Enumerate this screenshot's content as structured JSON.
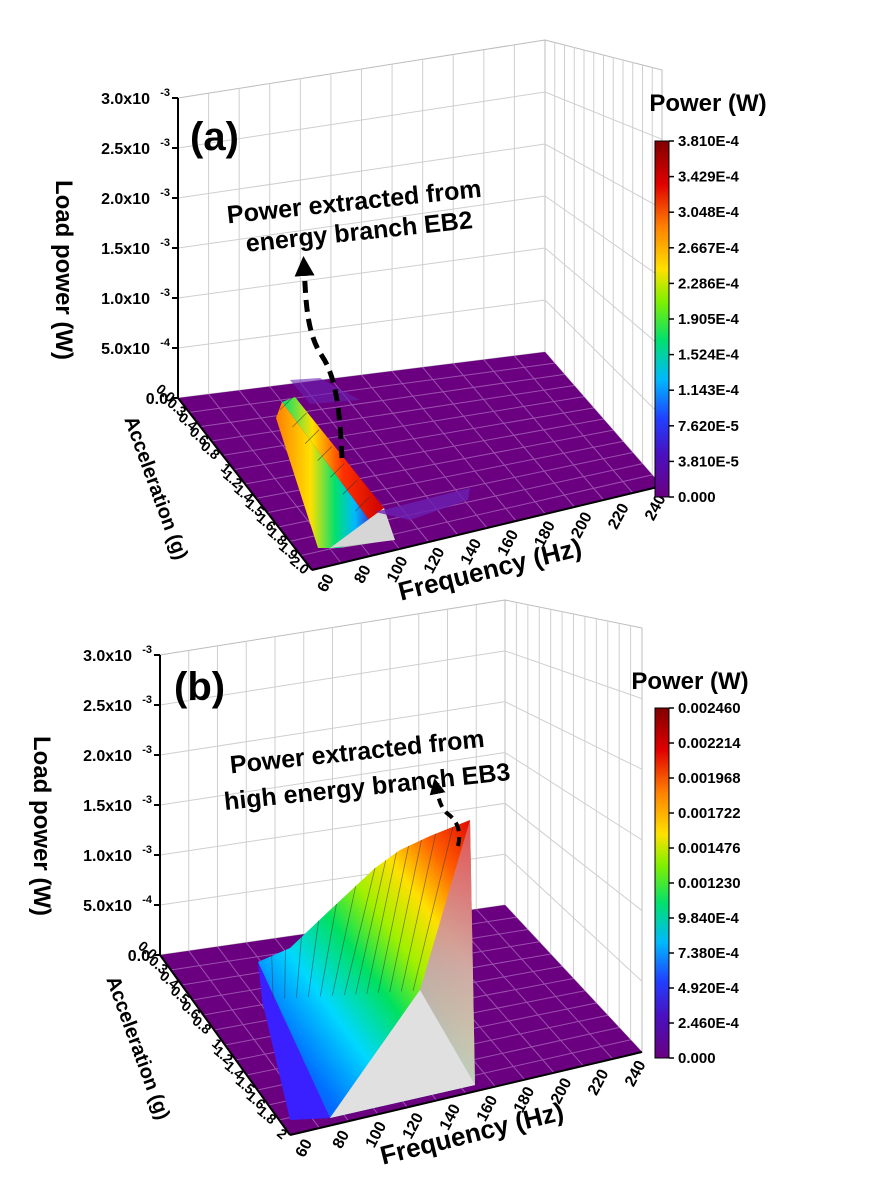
{
  "colors": {
    "floor": "#6a0080",
    "floor_line": "#9b4fae",
    "background": "#ffffff",
    "colormap": [
      "#6a0080",
      "#3a1aff",
      "#00c8ff",
      "#00e070",
      "#b0ff00",
      "#ffe000",
      "#ff8000",
      "#e00000",
      "#800000"
    ]
  },
  "chart_data": [
    {
      "type": "surface3d",
      "panel_label": "(a)",
      "annotation": [
        "Power extracted from",
        "energy branch EB2"
      ],
      "z_axis": {
        "label": "Load power (W)",
        "ticks": [
          "0.0",
          "5.0x10",
          "1.0x10",
          "1.5x10",
          "2.0x10",
          "2.5x10",
          "3.0x10"
        ],
        "exponents": [
          "",
          "-4",
          "-3",
          "-3",
          "-3",
          "-3",
          "-3"
        ],
        "values": [
          0,
          0.0005,
          0.001,
          0.0015,
          0.002,
          0.0025,
          0.003
        ],
        "range": [
          0,
          0.003
        ]
      },
      "y_axis": {
        "label": "Acceleration (g)",
        "ticks": [
          "0.0",
          "0.3",
          "0.4",
          "0.6",
          "0.8",
          "1",
          "1.2",
          "1.4",
          "1.5",
          "1.6",
          "1.8",
          "1.9",
          "2.0"
        ]
      },
      "x_axis": {
        "label": "Frequency (Hz)",
        "ticks": [
          "60",
          "80",
          "100",
          "120",
          "140",
          "160",
          "180",
          "200",
          "220",
          "240"
        ],
        "range": [
          50,
          240
        ]
      },
      "colorbar": {
        "title": "Power (W)",
        "ticks": [
          "3.810E-4",
          "3.429E-4",
          "3.048E-4",
          "2.667E-4",
          "2.286E-4",
          "1.905E-4",
          "1.524E-4",
          "1.143E-4",
          "7.620E-5",
          "3.810E-5",
          "0.000"
        ],
        "range": [
          0,
          0.000381
        ]
      },
      "surface_ridge": [
        {
          "acceleration": 0.1,
          "frequency": 62,
          "power": 0.0
        },
        {
          "acceleration": 0.4,
          "frequency": 66,
          "power": 4e-05
        },
        {
          "acceleration": 0.8,
          "frequency": 72,
          "power": 0.00012
        },
        {
          "acceleration": 1.2,
          "frequency": 78,
          "power": 0.00022
        },
        {
          "acceleration": 1.6,
          "frequency": 84,
          "power": 0.0003
        },
        {
          "acceleration": 2.0,
          "frequency": 90,
          "power": 0.00038
        }
      ]
    },
    {
      "type": "surface3d",
      "panel_label": "(b)",
      "annotation": [
        "Power extracted from",
        "high energy branch EB3"
      ],
      "z_axis": {
        "label": "Load power (W)",
        "ticks": [
          "0.0",
          "5.0x10",
          "1.0x10",
          "1.5x10",
          "2.0x10",
          "2.5x10",
          "3.0x10"
        ],
        "exponents": [
          "",
          "-4",
          "-3",
          "-3",
          "-3",
          "-3",
          "-3"
        ],
        "values": [
          0,
          0.0005,
          0.001,
          0.0015,
          0.002,
          0.0025,
          0.003
        ],
        "range": [
          0,
          0.003
        ]
      },
      "y_axis": {
        "label": "Acceleration (g)",
        "ticks": [
          "0.0",
          "0.3",
          "0.4",
          "0.5",
          "0.6",
          "0.8",
          "1",
          "1.2",
          "1.4",
          "1.5",
          "1.6",
          "1.8",
          "2"
        ]
      },
      "x_axis": {
        "label": "Frequency (Hz)",
        "ticks": [
          "60",
          "80",
          "100",
          "120",
          "140",
          "160",
          "180",
          "200",
          "220",
          "240"
        ],
        "range": [
          50,
          240
        ]
      },
      "colorbar": {
        "title": "Power (W)",
        "ticks": [
          "0.002460",
          "0.002214",
          "0.001968",
          "0.001722",
          "0.001476",
          "0.001230",
          "9.840E-4",
          "7.380E-4",
          "4.920E-4",
          "2.460E-4",
          "0.000"
        ],
        "range": [
          0,
          0.00246
        ]
      },
      "surface_ridge": [
        {
          "acceleration": 0.1,
          "frequency": 70,
          "power": 0.0003
        },
        {
          "acceleration": 0.6,
          "frequency": 85,
          "power": 0.0008
        },
        {
          "acceleration": 1.0,
          "frequency": 100,
          "power": 0.0013
        },
        {
          "acceleration": 1.4,
          "frequency": 120,
          "power": 0.0018
        },
        {
          "acceleration": 1.8,
          "frequency": 140,
          "power": 0.0022
        },
        {
          "acceleration": 2.0,
          "frequency": 150,
          "power": 0.00246
        }
      ]
    }
  ]
}
